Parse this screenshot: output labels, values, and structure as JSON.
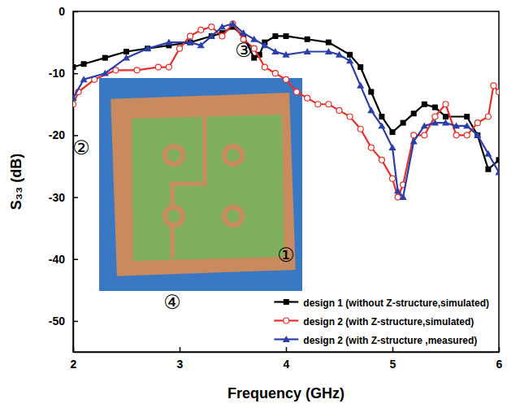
{
  "chart_data": {
    "type": "line",
    "x_label": "Frequency (GHz)",
    "y_label": "S₃₃ (dB)",
    "xlim": [
      2,
      6
    ],
    "xticks": [
      2,
      3,
      4,
      5,
      6
    ],
    "ylim": [
      -55,
      0
    ],
    "yticks": [
      0,
      -10,
      -20,
      -30,
      -40,
      -50
    ],
    "grid": false,
    "legend": "lower right",
    "annotations": [
      "①",
      "②",
      "③",
      "④"
    ],
    "series": [
      {
        "name": "design 1 (without Z-structure,simulated)",
        "color": "#000000",
        "marker": "square",
        "line_style": "solid",
        "x": [
          2.0,
          2.1,
          2.3,
          2.5,
          2.7,
          2.9,
          3.1,
          3.3,
          3.4,
          3.5,
          3.6,
          3.7,
          3.75,
          3.8,
          3.9,
          4.0,
          4.2,
          4.4,
          4.6,
          4.7,
          4.8,
          4.9,
          5.0,
          5.1,
          5.2,
          5.3,
          5.4,
          5.5,
          5.7,
          5.8,
          5.9,
          6.0
        ],
        "values": [
          -9,
          -8.5,
          -7.5,
          -6.5,
          -6,
          -5.5,
          -5,
          -4,
          -3.5,
          -2.5,
          -4,
          -7.5,
          -7,
          -5,
          -4,
          -4,
          -4.5,
          -5,
          -7,
          -9,
          -13,
          -17,
          -19.5,
          -18,
          -16.5,
          -15,
          -15.5,
          -17,
          -17,
          -20,
          -25.5,
          -24
        ]
      },
      {
        "name": "design 2 (with Z-structure,simulated)",
        "color": "#e8302a",
        "marker": "open-circle",
        "line_style": "solid",
        "x": [
          2.0,
          2.05,
          2.2,
          2.4,
          2.6,
          2.8,
          2.9,
          3.0,
          3.1,
          3.2,
          3.3,
          3.4,
          3.5,
          3.6,
          3.7,
          3.8,
          3.9,
          4.0,
          4.1,
          4.2,
          4.3,
          4.4,
          4.5,
          4.6,
          4.7,
          4.8,
          4.9,
          5.0,
          5.05,
          5.1,
          5.2,
          5.3,
          5.4,
          5.5,
          5.6,
          5.7,
          5.8,
          5.9,
          5.95,
          6.0
        ],
        "values": [
          -15,
          -13,
          -11,
          -9.5,
          -9.5,
          -9,
          -9,
          -6,
          -4,
          -3,
          -2.5,
          -4,
          -2,
          -4.5,
          -6,
          -9,
          -10,
          -11,
          -13,
          -14,
          -15,
          -15,
          -16,
          -17,
          -19,
          -22,
          -24,
          -27,
          -30,
          -28,
          -20,
          -20,
          -17,
          -15,
          -20,
          -20,
          -18,
          -17,
          -12,
          -13
        ]
      },
      {
        "name": "design 2 (with Z-structure ,measured)",
        "color": "#2a3fa8",
        "marker": "triangle",
        "line_style": "solid",
        "x": [
          2.0,
          2.1,
          2.3,
          2.5,
          2.7,
          2.9,
          3.1,
          3.2,
          3.3,
          3.4,
          3.5,
          3.6,
          3.7,
          3.8,
          3.9,
          4.0,
          4.2,
          4.4,
          4.5,
          4.6,
          4.7,
          4.8,
          4.9,
          5.0,
          5.05,
          5.1,
          5.2,
          5.3,
          5.4,
          5.5,
          5.6,
          5.7,
          5.8,
          5.9,
          6.0
        ],
        "values": [
          -14,
          -11,
          -10,
          -7.5,
          -6,
          -5,
          -5,
          -5.5,
          -4,
          -2.5,
          -2,
          -3.5,
          -4.5,
          -5.5,
          -6.5,
          -7,
          -6.5,
          -6.5,
          -7,
          -8,
          -12,
          -16,
          -18.5,
          -22,
          -29,
          -30,
          -21,
          -18.5,
          -18,
          -18,
          -18.5,
          -18.5,
          -20,
          -23,
          -26
        ]
      }
    ]
  }
}
